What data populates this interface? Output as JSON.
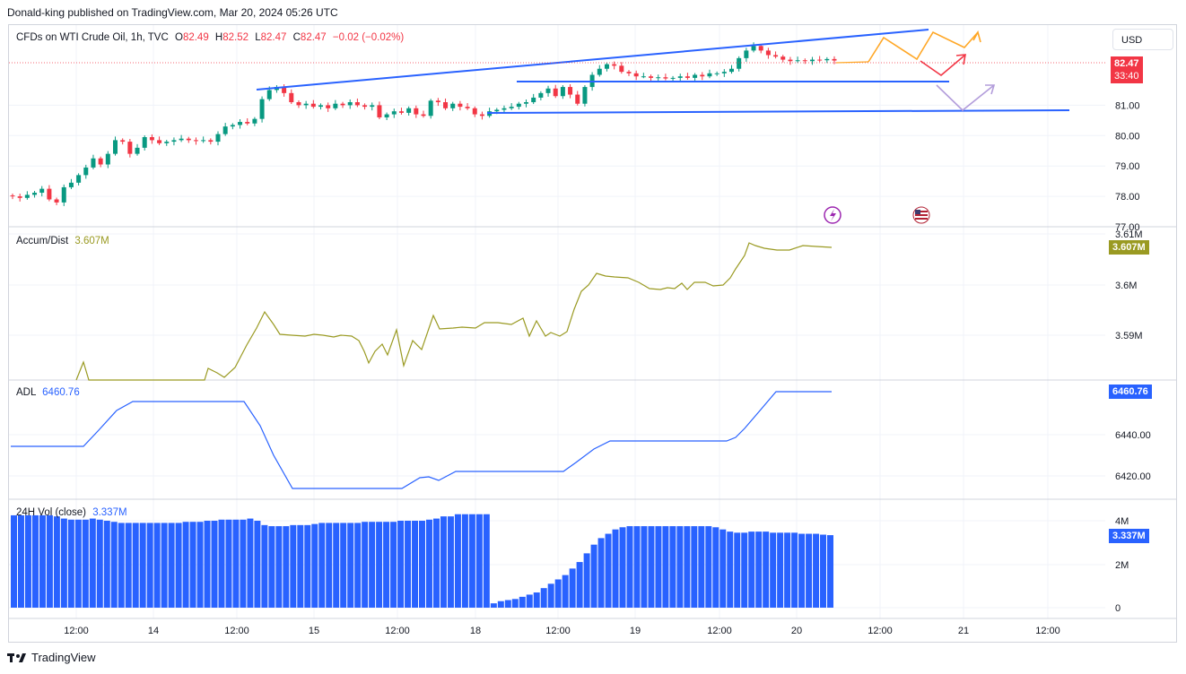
{
  "header": {
    "credit": "Donald-king published on TradingView.com, Mar 20, 2024 05:26 UTC",
    "currency_button": "USD"
  },
  "legend": {
    "symbol": "CFDs on WTI Crude Oil, 1h, TVC",
    "open_label": "O",
    "open": "82.49",
    "high_label": "H",
    "high": "82.52",
    "low_label": "L",
    "low": "82.47",
    "close_label": "C",
    "close": "82.47",
    "change": "−0.02 (−0.02%)"
  },
  "price_tag": {
    "value": "82.47",
    "countdown": "33:40",
    "color": "#f23645"
  },
  "indicators": {
    "accum": {
      "label": "Accum/Dist",
      "value": "3.607M",
      "tag": "3.607M",
      "color": "#9a9a22"
    },
    "adl": {
      "label": "ADL",
      "value": "6460.76",
      "tag": "6460.76",
      "color": "#2962ff"
    },
    "vol": {
      "label": "24H Vol (close)",
      "value": "3.337M",
      "tag": "3.337M",
      "color": "#2962ff"
    }
  },
  "brand": {
    "name": "TradingView"
  },
  "colors": {
    "up": "#089981",
    "down": "#f23645",
    "trendline": "#2962ff",
    "orange": "#ffa726",
    "purple": "#b39ddb",
    "grid": "#f0f3fa"
  },
  "chart_data": [
    {
      "type": "candlestick",
      "title": "CFDs on WTI Crude Oil, 1h, TVC",
      "y_ticks": [
        "77.00",
        "78.00",
        "79.00",
        "80.00",
        "81.00"
      ],
      "ylim": [
        77.0,
        82.9
      ],
      "x_ticks": [
        "12:00",
        "14",
        "12:00",
        "15",
        "12:00",
        "18",
        "12:00",
        "19",
        "12:00",
        "20",
        "12:00",
        "21",
        "12:00"
      ],
      "close_path": [
        78.0,
        77.95,
        78.05,
        78.12,
        78.25,
        77.9,
        77.8,
        78.3,
        78.45,
        78.7,
        78.95,
        79.25,
        79.05,
        79.4,
        79.85,
        79.8,
        79.4,
        79.6,
        79.95,
        79.85,
        79.75,
        79.8,
        79.85,
        79.9,
        79.85,
        79.82,
        79.85,
        79.8,
        80.05,
        80.3,
        80.35,
        80.45,
        80.4,
        80.55,
        81.2,
        81.5,
        81.6,
        81.4,
        81.1,
        81.0,
        81.05,
        80.95,
        81.0,
        80.9,
        81.05,
        81.0,
        81.1,
        81.0,
        80.95,
        81.0,
        80.6,
        80.7,
        80.8,
        80.75,
        80.9,
        80.7,
        80.65,
        81.15,
        81.1,
        80.9,
        81.05,
        80.95,
        80.9,
        80.7,
        80.65,
        80.8,
        80.85,
        80.9,
        80.95,
        81.05,
        81.1,
        81.25,
        81.4,
        81.55,
        81.3,
        81.6,
        81.35,
        81.05,
        81.6,
        82.0,
        82.2,
        82.35,
        82.3,
        82.1,
        82.05,
        81.95,
        81.95,
        81.9,
        81.92,
        81.88,
        81.9,
        81.95,
        81.9,
        82.0,
        81.95,
        82.05,
        82.05,
        82.1,
        82.2,
        82.55,
        82.8,
        82.95,
        82.8,
        82.65,
        82.6,
        82.5,
        82.45,
        82.48,
        82.45,
        82.5,
        82.48,
        82.52,
        82.47
      ],
      "annotations": {
        "rising_trendline": [
          [
            286,
            100
          ],
          [
            1035,
            33
          ]
        ],
        "support_1": [
          [
            576,
            91
          ],
          [
            1058,
            91
          ]
        ],
        "support_2": [
          [
            543,
            126
          ],
          [
            1192,
            123
          ]
        ]
      }
    },
    {
      "type": "line",
      "title": "Accum/Dist",
      "y_ticks": [
        "3.59M",
        "3.6M",
        "3.61M"
      ],
      "last_value": "3.607M"
    },
    {
      "type": "line",
      "title": "ADL",
      "y_ticks": [
        "6420.00",
        "6440.00"
      ],
      "last_value": "6460.76"
    },
    {
      "type": "bar",
      "title": "24H Vol (close)",
      "y_ticks": [
        "0",
        "2M",
        "4M"
      ],
      "last_value": "3.337M"
    }
  ]
}
